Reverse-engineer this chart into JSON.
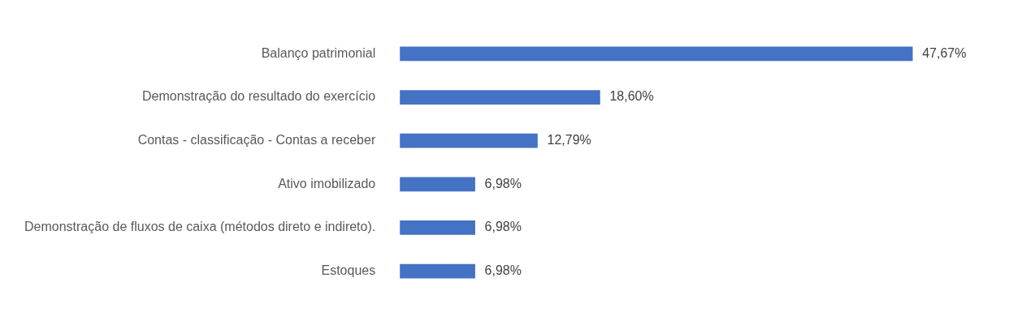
{
  "chart_data": {
    "type": "bar",
    "orientation": "horizontal",
    "categories": [
      "Balanço patrimonial",
      "Demonstração do resultado do exercício",
      "Contas - classificação - Contas a receber",
      "Ativo imobilizado",
      "Demonstração de fluxos de caixa (métodos direto e indireto).",
      "Estoques"
    ],
    "values": [
      47.67,
      18.6,
      12.79,
      6.98,
      6.98,
      6.98
    ],
    "value_labels": [
      "47,67%",
      "18,60%",
      "12,79%",
      "6,98%",
      "6,98%",
      "6,98%"
    ],
    "color": "#4472c4"
  }
}
